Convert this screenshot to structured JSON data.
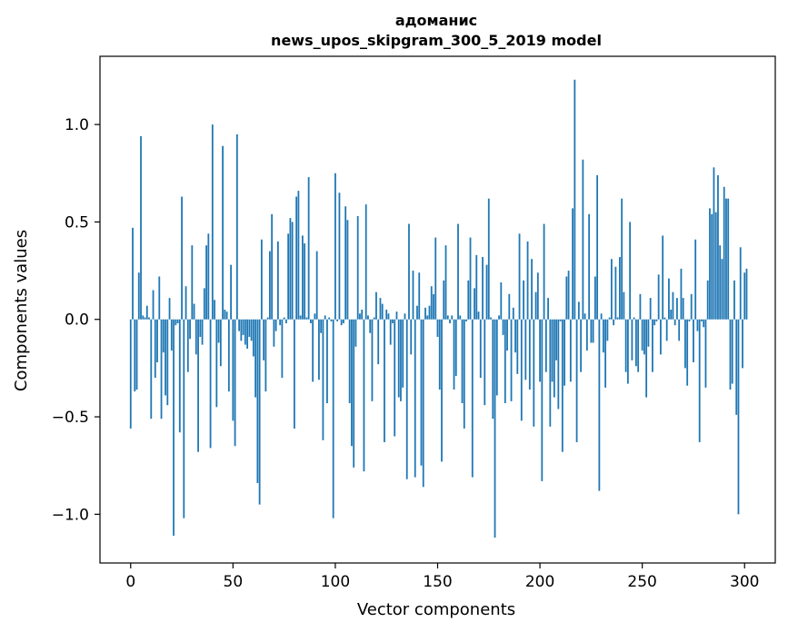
{
  "chart_data": {
    "type": "bar",
    "title": "адоманис",
    "subtitle": "news_upos_skipgram_300_5_2019 model",
    "xlabel": "Vector components",
    "ylabel": "Components values",
    "xlim": [
      -15,
      315
    ],
    "ylim": [
      -1.25,
      1.35
    ],
    "x_ticks": [
      0,
      50,
      100,
      150,
      200,
      250,
      300
    ],
    "x_tick_labels": [
      "0",
      "50",
      "100",
      "150",
      "200",
      "250",
      "300"
    ],
    "y_ticks": [
      -1.0,
      -0.5,
      0.0,
      0.5,
      1.0
    ],
    "y_tick_labels": [
      "−1.0",
      "−0.5",
      "0.0",
      "0.5",
      "1.0"
    ],
    "bar_color": "#1f77b4",
    "grid": false,
    "legend": "none",
    "values": [
      -0.56,
      0.47,
      -0.37,
      -0.36,
      0.24,
      0.94,
      0.02,
      0.01,
      0.07,
      0.01,
      -0.51,
      0.15,
      -0.3,
      -0.22,
      0.22,
      -0.51,
      -0.17,
      -0.39,
      -0.44,
      0.11,
      -0.16,
      -1.11,
      -0.03,
      -0.02,
      -0.58,
      0.63,
      -1.02,
      0.17,
      -0.27,
      -0.1,
      0.38,
      0.08,
      -0.18,
      -0.68,
      -0.09,
      -0.13,
      0.16,
      0.38,
      0.44,
      -0.66,
      1.0,
      0.1,
      -0.45,
      -0.12,
      -0.24,
      0.89,
      0.05,
      0.04,
      -0.37,
      0.28,
      -0.52,
      -0.65,
      0.95,
      -0.06,
      -0.11,
      -0.08,
      -0.13,
      -0.15,
      -0.09,
      -0.11,
      -0.19,
      -0.4,
      -0.84,
      -0.95,
      0.41,
      -0.21,
      -0.37,
      0.01,
      0.35,
      0.54,
      -0.14,
      -0.06,
      0.4,
      -0.03,
      -0.3,
      0.01,
      -0.02,
      0.44,
      0.52,
      0.5,
      -0.56,
      0.63,
      0.66,
      0.02,
      0.43,
      0.39,
      0.01,
      0.73,
      -0.02,
      -0.32,
      0.03,
      0.35,
      -0.31,
      -0.07,
      -0.62,
      0.02,
      -0.43,
      0.01,
      -0.01,
      -1.02,
      0.75,
      -0.01,
      0.65,
      -0.03,
      -0.02,
      0.58,
      0.51,
      -0.43,
      -0.65,
      -0.76,
      -0.14,
      0.53,
      0.03,
      0.05,
      -0.78,
      0.59,
      0.02,
      -0.07,
      -0.42,
      0.01,
      0.14,
      -0.23,
      0.11,
      0.08,
      -0.63,
      0.05,
      0.03,
      -0.13,
      -0.02,
      -0.6,
      0.04,
      -0.4,
      -0.42,
      -0.35,
      0.03,
      -0.82,
      0.49,
      -0.18,
      0.25,
      -0.81,
      0.07,
      0.24,
      -0.75,
      -0.86,
      0.06,
      0.02,
      0.07,
      0.17,
      0.13,
      0.42,
      -0.09,
      -0.36,
      -0.73,
      0.2,
      0.38,
      0.02,
      -0.02,
      0.02,
      -0.36,
      -0.29,
      0.49,
      0.02,
      -0.43,
      -0.56,
      -0.01,
      0.2,
      0.42,
      -0.81,
      0.16,
      0.33,
      0.04,
      -0.3,
      0.32,
      -0.44,
      0.28,
      0.62,
      0.01,
      -0.51,
      -1.12,
      -0.39,
      0.02,
      0.19,
      -0.08,
      -0.43,
      -0.16,
      0.13,
      -0.42,
      0.06,
      -0.17,
      -0.28,
      0.44,
      -0.52,
      0.2,
      -0.31,
      0.4,
      -0.36,
      0.31,
      -0.55,
      0.14,
      0.24,
      -0.32,
      -0.83,
      0.49,
      -0.27,
      0.11,
      -0.55,
      -0.32,
      -0.4,
      -0.21,
      -0.46,
      -0.01,
      -0.68,
      -0.34,
      0.22,
      0.25,
      -0.32,
      0.57,
      1.23,
      -0.63,
      0.09,
      -0.27,
      0.82,
      0.03,
      -0.16,
      0.54,
      -0.12,
      -0.12,
      0.22,
      0.74,
      -0.88,
      0.03,
      -0.17,
      -0.35,
      -0.11,
      0.01,
      0.31,
      -0.03,
      0.27,
      0.01,
      0.32,
      0.62,
      0.14,
      -0.27,
      -0.33,
      0.5,
      -0.21,
      0.01,
      -0.24,
      -0.27,
      0.13,
      -0.16,
      -0.18,
      -0.4,
      -0.14,
      0.11,
      -0.27,
      -0.03,
      -0.01,
      0.23,
      -0.18,
      0.43,
      0.01,
      -0.11,
      0.21,
      0.05,
      0.14,
      -0.03,
      0.11,
      -0.11,
      0.26,
      0.11,
      -0.25,
      -0.34,
      -0.01,
      0.13,
      -0.22,
      0.41,
      -0.06,
      -0.63,
      -0.01,
      -0.04,
      -0.35,
      0.2,
      0.57,
      0.54,
      0.78,
      0.55,
      0.74,
      0.38,
      0.31,
      0.68,
      0.62,
      0.62,
      -0.36,
      -0.33,
      0.2,
      -0.49,
      -1.0,
      0.37,
      -0.25,
      0.24,
      0.26
    ]
  }
}
